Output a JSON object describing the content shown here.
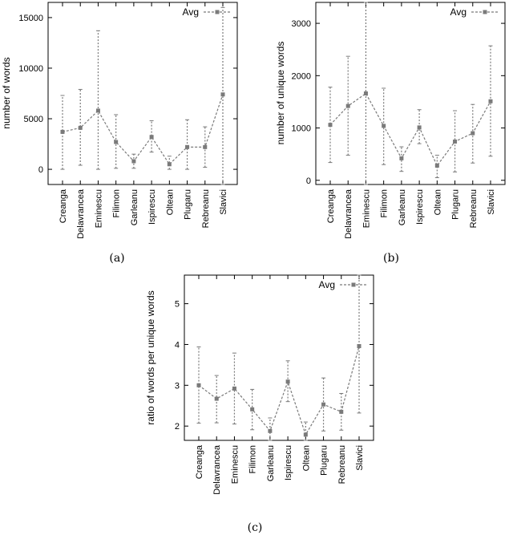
{
  "chart_data": [
    {
      "type": "line",
      "panel": "(a)",
      "ylabel": "number of words",
      "ylim": [
        -1500,
        16500
      ],
      "yticks": [
        0,
        5000,
        10000,
        15000
      ],
      "categories": [
        "Creanga",
        "Delavrancea",
        "Eminescu",
        "Filimon",
        "Garleanu",
        "Ispirescu",
        "Oltean",
        "Plugaru",
        "Rebreanu",
        "Slavici"
      ],
      "series": [
        {
          "name": "Avg",
          "values": [
            3700,
            4100,
            5800,
            2700,
            800,
            3200,
            500,
            2200,
            2200,
            7400
          ],
          "err_low": [
            0,
            400,
            0,
            100,
            100,
            1700,
            0,
            0,
            200,
            -1500
          ],
          "err_high": [
            7300,
            7900,
            13700,
            5400,
            1500,
            4800,
            1300,
            4900,
            4200,
            16000
          ]
        }
      ],
      "legend": "top-right",
      "color": "#7a7a7a"
    },
    {
      "type": "line",
      "panel": "(b)",
      "ylabel": "number of unique words",
      "ylim": [
        -80,
        3400
      ],
      "yticks": [
        0,
        1000,
        2000,
        3000
      ],
      "categories": [
        "Creanga",
        "Delavrancea",
        "Eminescu",
        "Filimon",
        "Garleanu",
        "Ispirescu",
        "Oltean",
        "Plugaru",
        "Rebreanu",
        "Slavici"
      ],
      "series": [
        {
          "name": "Avg",
          "values": [
            1060,
            1420,
            1660,
            1040,
            420,
            1010,
            280,
            740,
            900,
            1510
          ],
          "err_low": [
            340,
            480,
            -80,
            300,
            170,
            700,
            50,
            160,
            330,
            460
          ],
          "err_high": [
            1780,
            2370,
            3400,
            1760,
            640,
            1350,
            480,
            1330,
            1450,
            2570
          ]
        }
      ],
      "legend": "top-right",
      "color": "#7a7a7a"
    },
    {
      "type": "line",
      "panel": "(c)",
      "ylabel": "ratio of words per unique words",
      "ylim": [
        1.65,
        5.7
      ],
      "yticks": [
        2,
        3,
        4,
        5
      ],
      "categories": [
        "Creanga",
        "Delavrancea",
        "Eminescu",
        "Filimon",
        "Garleanu",
        "Ispirescu",
        "Oltean",
        "Plugaru",
        "Rebreanu",
        "Slavici"
      ],
      "series": [
        {
          "name": "Avg",
          "values": [
            3.0,
            2.67,
            2.92,
            2.41,
            1.88,
            3.09,
            1.79,
            2.53,
            2.35,
            3.96
          ],
          "err_low": [
            2.07,
            2.08,
            2.05,
            1.91,
            1.65,
            2.6,
            1.65,
            1.88,
            1.9,
            2.32
          ],
          "err_high": [
            3.94,
            3.24,
            3.79,
            2.9,
            2.2,
            3.6,
            2.1,
            3.18,
            2.8,
            5.7
          ]
        }
      ],
      "legend": "top-right",
      "color": "#7a7a7a"
    }
  ]
}
